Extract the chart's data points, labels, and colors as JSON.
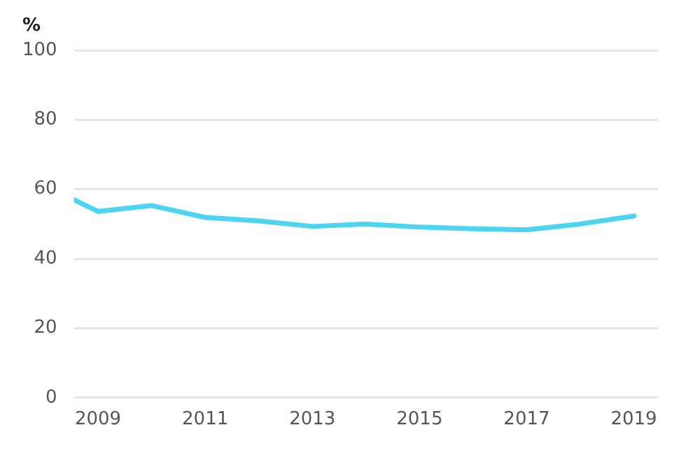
{
  "chart_data": {
    "type": "line",
    "ylabel": "%",
    "x": [
      2008.55,
      2009,
      2010,
      2011,
      2012,
      2013,
      2014,
      2015,
      2016,
      2017,
      2018,
      2019
    ],
    "series": [
      {
        "color": "#4dd4f0",
        "values": [
          57,
          53.6,
          55.3,
          51.9,
          50.9,
          49.3,
          50,
          49.1,
          48.6,
          48.3,
          50,
          52.3
        ]
      }
    ],
    "xlim": [
      2008.55,
      2019.45
    ],
    "xticks": [
      2009,
      2011,
      2013,
      2015,
      2017,
      2019
    ],
    "ylim": [
      0,
      100
    ],
    "yticks": [
      0,
      20,
      40,
      60,
      80,
      100
    ],
    "grid": "y",
    "legend": false,
    "marker": "none",
    "line_style": "solid"
  }
}
